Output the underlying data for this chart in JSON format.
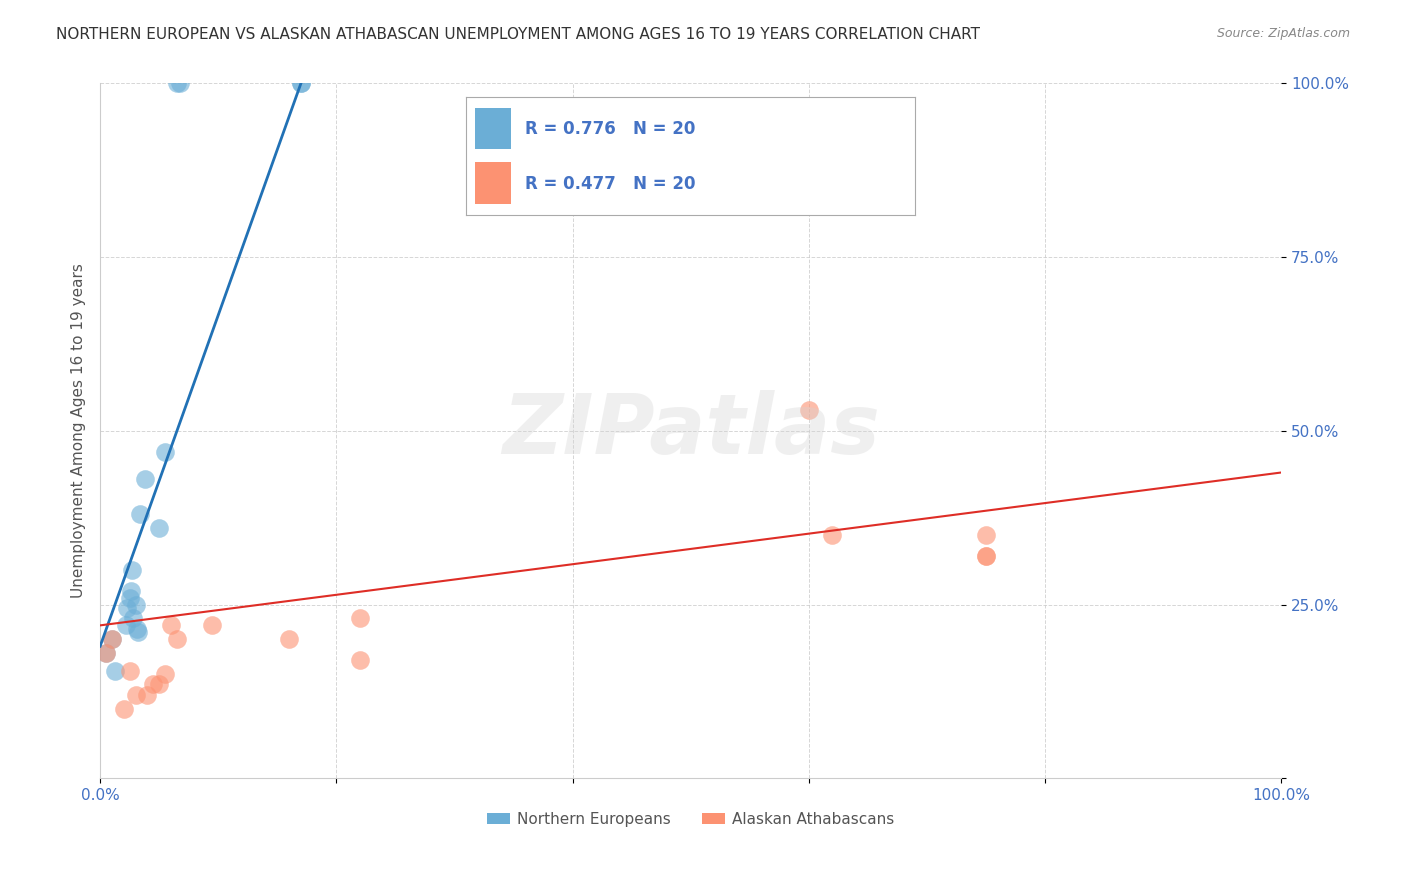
{
  "title": "NORTHERN EUROPEAN VS ALASKAN ATHABASCAN UNEMPLOYMENT AMONG AGES 16 TO 19 YEARS CORRELATION CHART",
  "source": "Source: ZipAtlas.com",
  "xlabel": "",
  "ylabel": "Unemployment Among Ages 16 to 19 years",
  "xlim": [
    0.0,
    1.0
  ],
  "ylim": [
    0.0,
    1.0
  ],
  "xtick_labels": [
    "0.0%",
    "",
    "",
    "",
    "",
    "100.0%"
  ],
  "ytick_labels": [
    "",
    "25.0%",
    "50.0%",
    "75.0%",
    "100.0%"
  ],
  "legend_r1": "R = 0.776   N = 20",
  "legend_r2": "R = 0.477   N = 20",
  "legend_label1": "Northern Europeans",
  "legend_label2": "Alaskan Athabascans",
  "watermark": "ZIPatlas",
  "blue_color": "#6baed6",
  "blue_line_color": "#2171b5",
  "pink_color": "#fc9272",
  "pink_line_color": "#de2d26",
  "blue_scatter_x": [
    0.005,
    0.01,
    0.013,
    0.022,
    0.023,
    0.025,
    0.026,
    0.027,
    0.028,
    0.03,
    0.031,
    0.032,
    0.034,
    0.038,
    0.05,
    0.055,
    0.065,
    0.068,
    0.17,
    0.17
  ],
  "blue_scatter_y": [
    0.18,
    0.2,
    0.155,
    0.22,
    0.245,
    0.26,
    0.27,
    0.3,
    0.23,
    0.25,
    0.215,
    0.21,
    0.38,
    0.43,
    0.36,
    0.47,
    1.0,
    1.0,
    1.0,
    1.0
  ],
  "pink_scatter_x": [
    0.005,
    0.01,
    0.02,
    0.025,
    0.03,
    0.04,
    0.045,
    0.05,
    0.055,
    0.06,
    0.065,
    0.095,
    0.16,
    0.22,
    0.22,
    0.6,
    0.62,
    0.75,
    0.75,
    0.75
  ],
  "pink_scatter_y": [
    0.18,
    0.2,
    0.1,
    0.155,
    0.12,
    0.12,
    0.135,
    0.135,
    0.15,
    0.22,
    0.2,
    0.22,
    0.2,
    0.23,
    0.17,
    0.53,
    0.35,
    0.35,
    0.32,
    0.32
  ],
  "blue_line_x": [
    0.0,
    0.17
  ],
  "blue_line_y": [
    0.19,
    1.0
  ],
  "pink_line_x": [
    0.0,
    1.0
  ],
  "pink_line_y": [
    0.22,
    0.44
  ],
  "grid_color": "#cccccc",
  "title_color": "#333333",
  "axis_label_color": "#555555",
  "right_axis_color": "#4472c4",
  "legend_text_color": "#4472c4",
  "legend_r_color": "#333333"
}
